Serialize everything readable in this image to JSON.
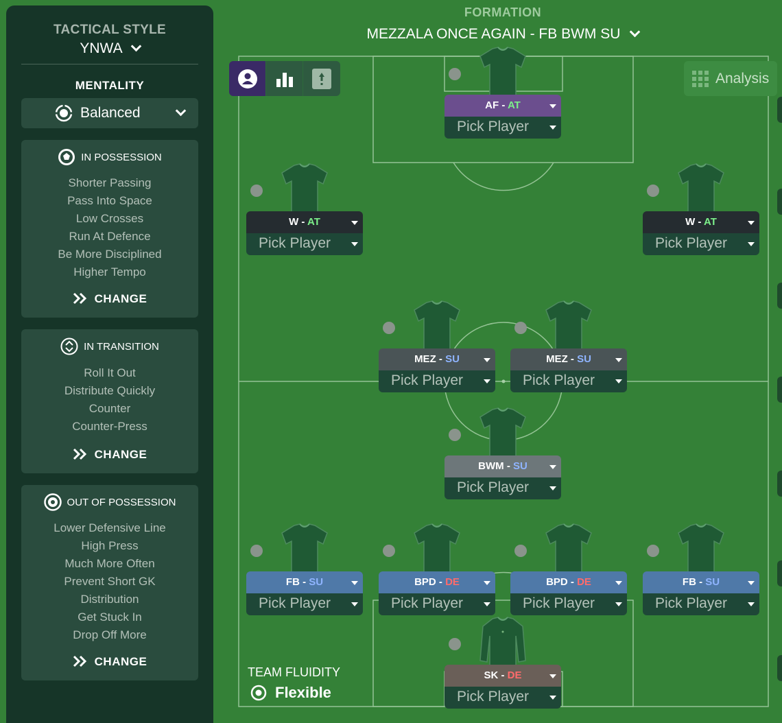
{
  "sidebar": {
    "tactical_style_label": "TACTICAL STYLE",
    "tactical_style_value": "YNWA",
    "mentality_label": "MENTALITY",
    "mentality_value": "Balanced",
    "panels": [
      {
        "title": "IN POSSESSION",
        "icon": "ball-icon",
        "items": [
          "Shorter Passing",
          "Pass Into Space",
          "Low Crosses",
          "Run At Defence",
          "Be More Disciplined",
          "Higher Tempo"
        ],
        "change_label": "CHANGE"
      },
      {
        "title": "IN TRANSITION",
        "icon": "transition-icon",
        "items": [
          "Roll It Out",
          "Distribute Quickly",
          "Counter",
          "Counter-Press"
        ],
        "change_label": "CHANGE"
      },
      {
        "title": "OUT OF POSSESSION",
        "icon": "defend-icon",
        "items": [
          "Lower Defensive Line",
          "High Press",
          "Much More Often",
          "Prevent Short GK",
          "Distribution",
          "Get Stuck In",
          "Drop Off More"
        ],
        "change_label": "CHANGE"
      }
    ]
  },
  "formation": {
    "label": "FORMATION",
    "value": "MEZZALA ONCE AGAIN - FB BWM SU"
  },
  "toolbar": {
    "analysis_label": "Analysis"
  },
  "positions": [
    {
      "id": "af",
      "role": "AF",
      "duty": "AT",
      "pick": "Pick Player"
    },
    {
      "id": "w-left",
      "role": "W",
      "duty": "AT",
      "pick": "Pick Player"
    },
    {
      "id": "w-right",
      "role": "W",
      "duty": "AT",
      "pick": "Pick Player"
    },
    {
      "id": "mez-left",
      "role": "MEZ",
      "duty": "SU",
      "pick": "Pick Player"
    },
    {
      "id": "mez-right",
      "role": "MEZ",
      "duty": "SU",
      "pick": "Pick Player"
    },
    {
      "id": "bwm",
      "role": "BWM",
      "duty": "SU",
      "pick": "Pick Player"
    },
    {
      "id": "fb-left",
      "role": "FB",
      "duty": "SU",
      "pick": "Pick Player"
    },
    {
      "id": "bpd-left",
      "role": "BPD",
      "duty": "DE",
      "pick": "Pick Player"
    },
    {
      "id": "bpd-right",
      "role": "BPD",
      "duty": "DE",
      "pick": "Pick Player"
    },
    {
      "id": "fb-right",
      "role": "FB",
      "duty": "SU",
      "pick": "Pick Player"
    },
    {
      "id": "sk",
      "role": "SK",
      "duty": "DE",
      "pick": "Pick Player"
    }
  ],
  "team_fluidity": {
    "label": "TEAM FLUIDITY",
    "value": "Flexible"
  },
  "colors": {
    "pitch": "#348137",
    "sidebar": "#163528",
    "duty_attack": "#7cf08a",
    "duty_support": "#8fb4ff",
    "duty_defend": "#ff6b6b",
    "role_attack_bg": "#6b4e8e",
    "role_dark_bg": "#252c30",
    "role_mid_bg": "#4a5456",
    "role_bwm_bg": "#6d777a",
    "role_def_bg": "#4f79a8",
    "role_gk_bg": "#6a5f58"
  }
}
